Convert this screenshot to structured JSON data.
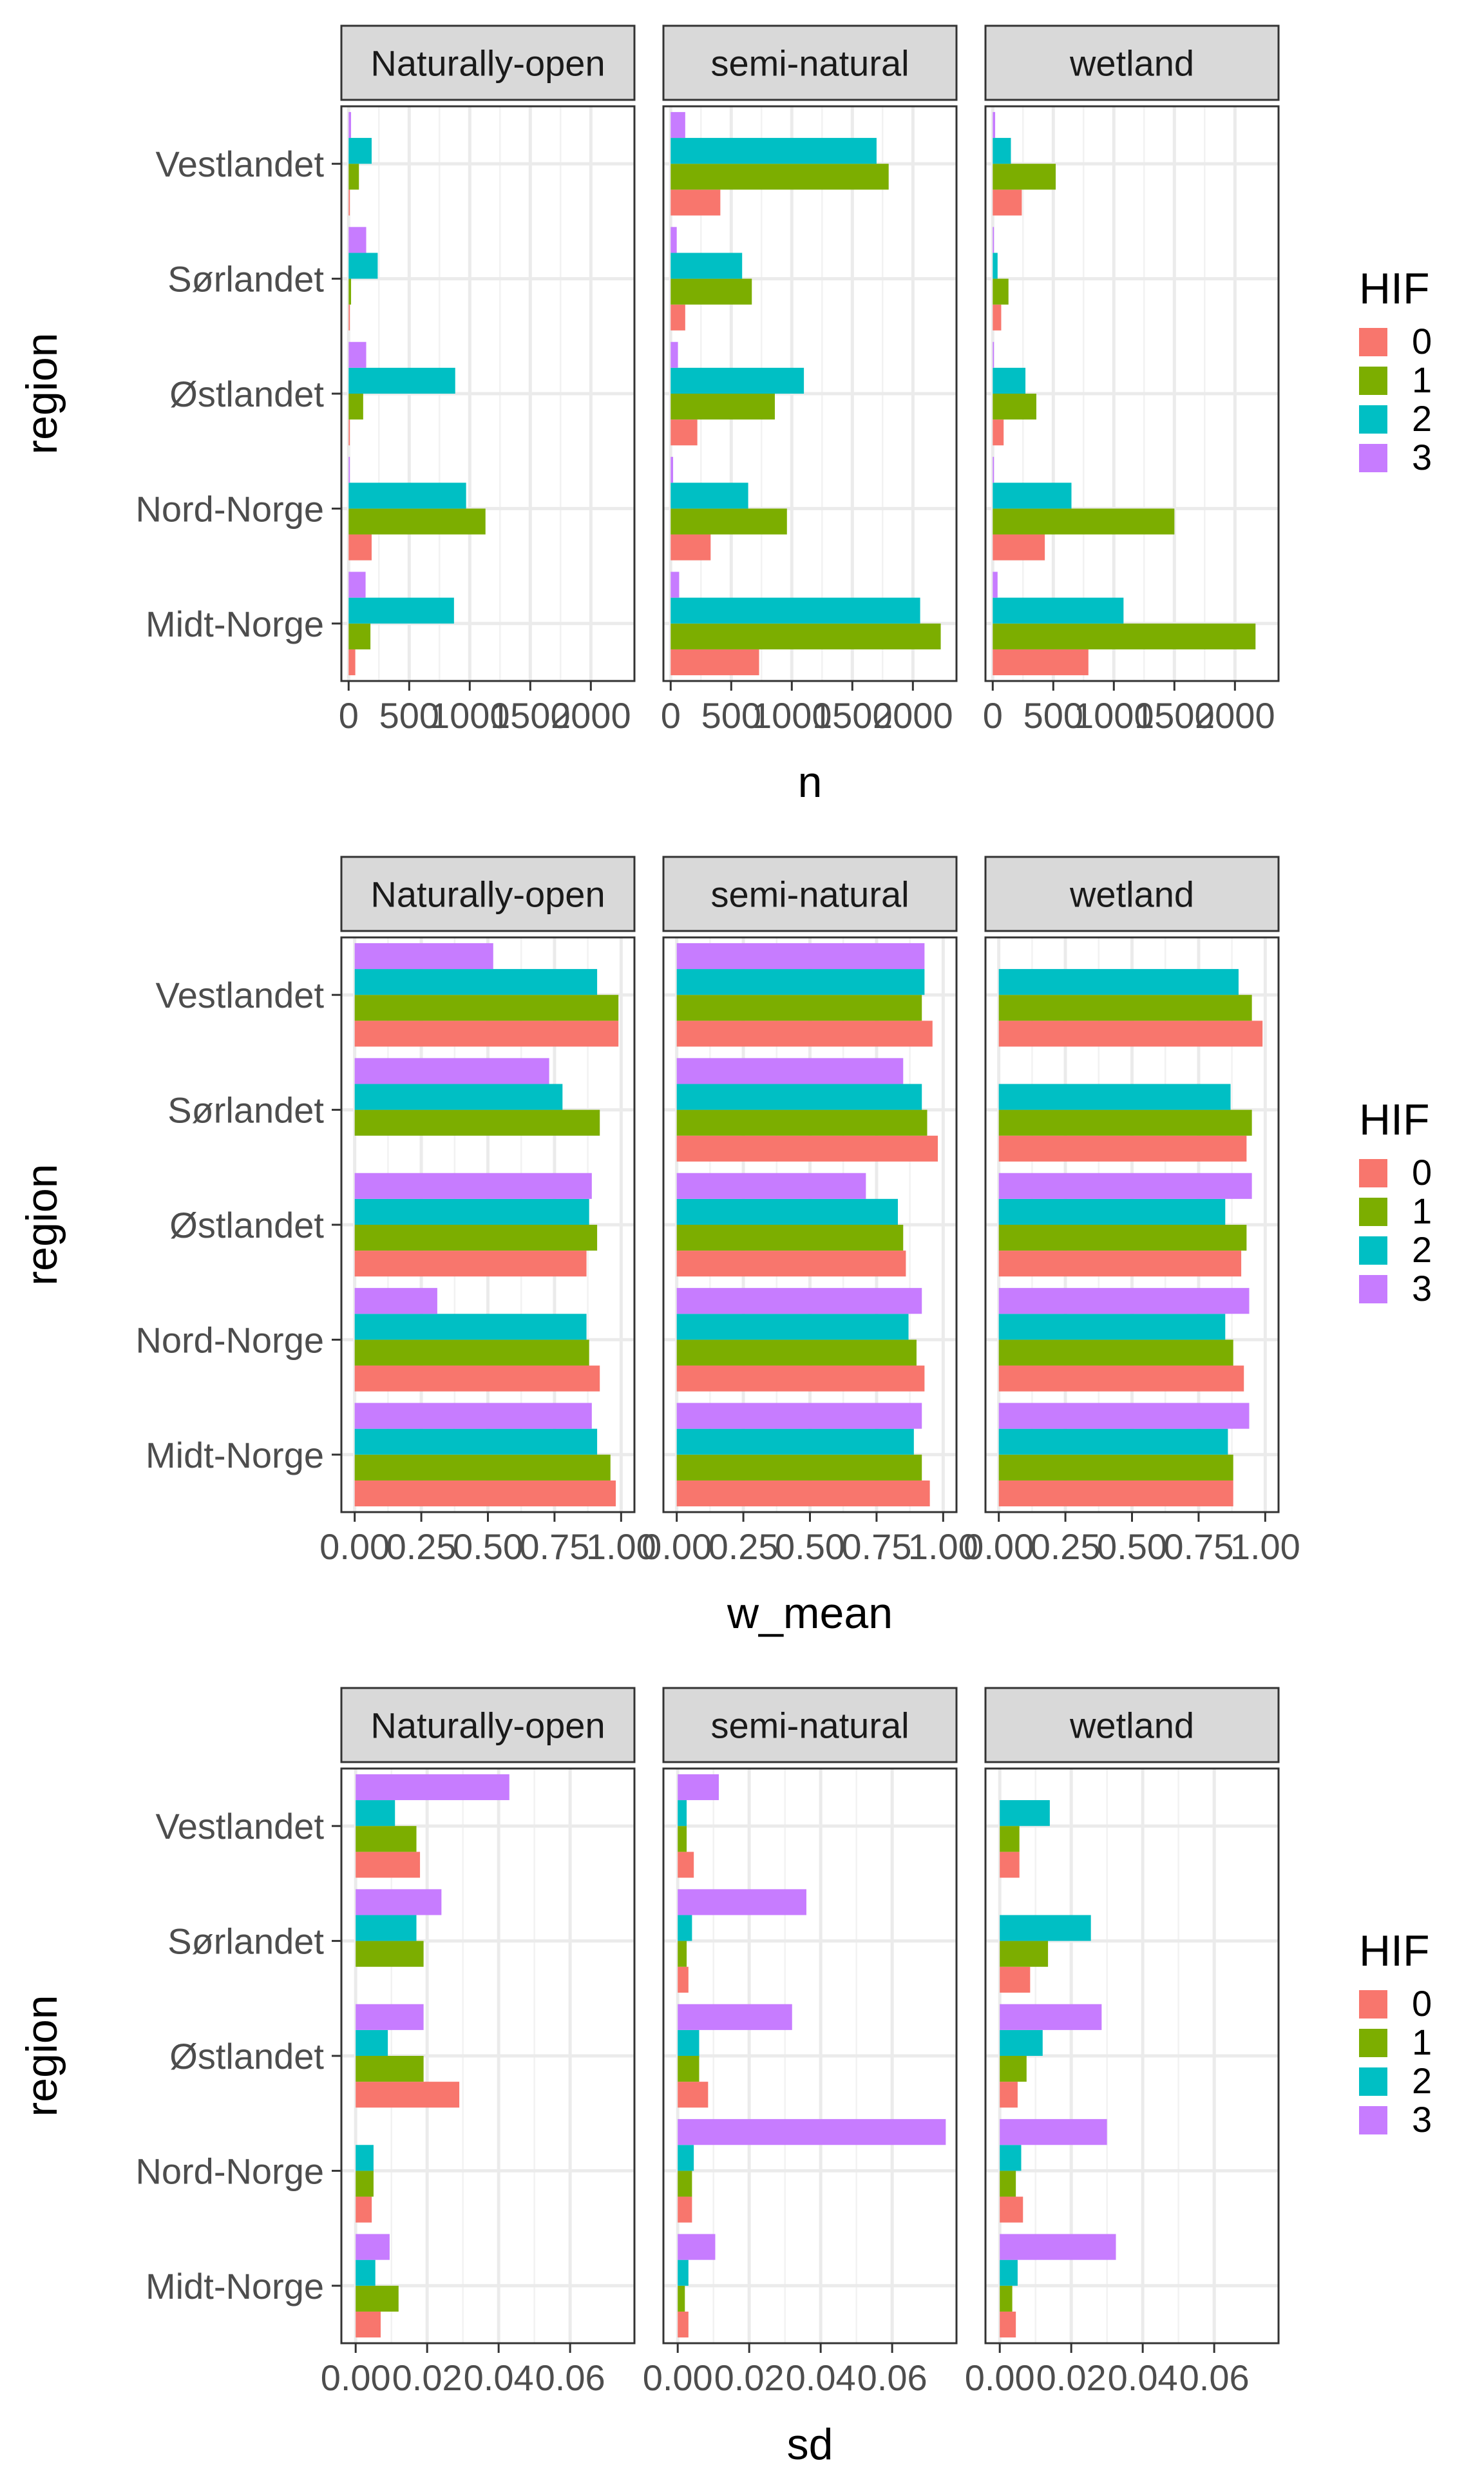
{
  "legend": {
    "title": "HIF",
    "levels": [
      "0",
      "1",
      "2",
      "3"
    ],
    "colors": [
      "#F8766D",
      "#7CAE00",
      "#00BFC4",
      "#C77CFF"
    ]
  },
  "chart_data": [
    {
      "type": "bar",
      "orientation": "horizontal",
      "ylabel": "region",
      "xlabel": "n",
      "facets": [
        "Naturally-open",
        "semi-natural",
        "wetland"
      ],
      "categories": [
        "Vestlandet",
        "Sørlandet",
        "Østlandet",
        "Nord-Norge",
        "Midt-Norge"
      ],
      "xlim": [
        -60,
        2360
      ],
      "xticks": [
        0,
        500,
        1000,
        1500,
        2000
      ],
      "xtick_labels": [
        "0",
        "500",
        "1000",
        "1500",
        "2000"
      ],
      "grid": true,
      "legend_position": "right",
      "values": {
        "Naturally-open": {
          "0": [
            10,
            10,
            10,
            190,
            55
          ],
          "1": [
            85,
            20,
            120,
            1130,
            180
          ],
          "2": [
            190,
            240,
            880,
            970,
            870
          ],
          "3": [
            20,
            145,
            145,
            10,
            140
          ]
        },
        "semi-natural": {
          "0": [
            410,
            120,
            220,
            330,
            730
          ],
          "1": [
            1800,
            670,
            860,
            960,
            2230
          ],
          "2": [
            1700,
            590,
            1100,
            640,
            2060
          ],
          "3": [
            120,
            50,
            60,
            20,
            70
          ]
        },
        "wetland": {
          "0": [
            240,
            70,
            90,
            430,
            790
          ],
          "1": [
            520,
            130,
            360,
            1500,
            2170
          ],
          "2": [
            150,
            40,
            270,
            650,
            1080
          ],
          "3": [
            20,
            10,
            10,
            10,
            40
          ]
        }
      }
    },
    {
      "type": "bar",
      "orientation": "horizontal",
      "ylabel": "region",
      "xlabel": "w_mean",
      "facets": [
        "Naturally-open",
        "semi-natural",
        "wetland"
      ],
      "categories": [
        "Vestlandet",
        "Sørlandet",
        "Østlandet",
        "Nord-Norge",
        "Midt-Norge"
      ],
      "xlim": [
        -0.05,
        1.05
      ],
      "xticks": [
        0,
        0.25,
        0.5,
        0.75,
        1
      ],
      "xtick_labels": [
        "0.00",
        "0.25",
        "0.50",
        "0.75",
        "1.00"
      ],
      "grid": true,
      "legend_position": "right",
      "values": {
        "Naturally-open": {
          "0": [
            0.99,
            0.0,
            0.87,
            0.92,
            0.98
          ],
          "1": [
            0.99,
            0.92,
            0.91,
            0.88,
            0.96
          ],
          "2": [
            0.91,
            0.78,
            0.88,
            0.87,
            0.91
          ],
          "3": [
            0.52,
            0.73,
            0.89,
            0.31,
            0.89
          ]
        },
        "semi-natural": {
          "0": [
            0.96,
            0.98,
            0.86,
            0.93,
            0.95
          ],
          "1": [
            0.92,
            0.94,
            0.85,
            0.9,
            0.92
          ],
          "2": [
            0.93,
            0.92,
            0.83,
            0.87,
            0.89
          ],
          "3": [
            0.93,
            0.85,
            0.71,
            0.92,
            0.92
          ]
        },
        "wetland": {
          "0": [
            0.99,
            0.93,
            0.91,
            0.92,
            0.88
          ],
          "1": [
            0.95,
            0.95,
            0.93,
            0.88,
            0.88
          ],
          "2": [
            0.9,
            0.87,
            0.85,
            0.85,
            0.86
          ],
          "3": [
            0.0,
            0.0,
            0.95,
            0.94,
            0.94
          ]
        }
      }
    },
    {
      "type": "bar",
      "orientation": "horizontal",
      "ylabel": "region",
      "xlabel": "sd",
      "facets": [
        "Naturally-open",
        "semi-natural",
        "wetland"
      ],
      "categories": [
        "Vestlandet",
        "Sørlandet",
        "Østlandet",
        "Nord-Norge",
        "Midt-Norge"
      ],
      "xlim": [
        -0.004,
        0.078
      ],
      "xticks": [
        0,
        0.02,
        0.04,
        0.06
      ],
      "xtick_labels": [
        "0.00",
        "0.02",
        "0.04",
        "0.06"
      ],
      "grid": true,
      "legend_position": "right",
      "values": {
        "Naturally-open": {
          "0": [
            0.018,
            0.0,
            0.029,
            0.0045,
            0.007
          ],
          "1": [
            0.017,
            0.019,
            0.019,
            0.005,
            0.012
          ],
          "2": [
            0.011,
            0.017,
            0.009,
            0.005,
            0.0055
          ],
          "3": [
            0.043,
            0.024,
            0.019,
            0.0,
            0.0095
          ]
        },
        "semi-natural": {
          "0": [
            0.0045,
            0.003,
            0.0085,
            0.004,
            0.003
          ],
          "1": [
            0.0025,
            0.0025,
            0.006,
            0.004,
            0.002
          ],
          "2": [
            0.0025,
            0.004,
            0.006,
            0.0045,
            0.003
          ],
          "3": [
            0.0115,
            0.036,
            0.032,
            0.075,
            0.0105
          ]
        },
        "wetland": {
          "0": [
            0.0055,
            0.0085,
            0.005,
            0.0065,
            0.0045
          ],
          "1": [
            0.0055,
            0.0135,
            0.0075,
            0.0045,
            0.0035
          ],
          "2": [
            0.014,
            0.0255,
            0.012,
            0.006,
            0.005
          ],
          "3": [
            0.0,
            0.0,
            0.0285,
            0.03,
            0.0325
          ]
        }
      }
    }
  ]
}
